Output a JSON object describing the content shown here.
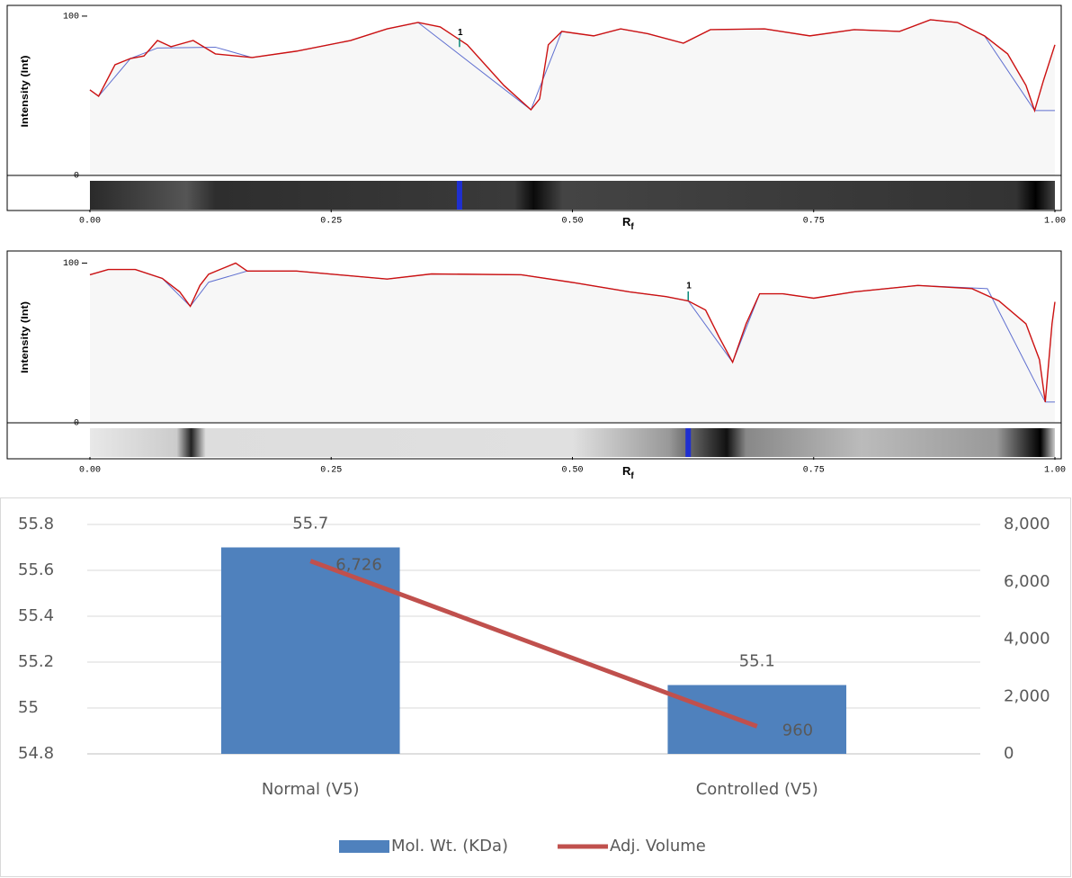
{
  "chart_data": [
    {
      "type": "densitometry",
      "y_label": "Intensity (Int)",
      "x_label": "R",
      "x_label_sub": "f",
      "xlim": [
        0,
        1
      ],
      "xticks": [
        {
          "value": 0,
          "label": "0.00"
        },
        {
          "value": 0.25,
          "label": "0.25"
        },
        {
          "value": 0.5,
          "label": "0.50"
        },
        {
          "value": 0.75,
          "label": "0.75"
        },
        {
          "value": 1,
          "label": "1.00"
        }
      ],
      "ylim": [
        0,
        105.6
      ],
      "yticks": [
        0,
        100
      ],
      "series": [
        {
          "color": "#cc1111",
          "x": [
            0,
            0.009,
            0.026,
            0.042,
            0.056,
            0.07,
            0.084,
            0.107,
            0.13,
            0.168,
            0.214,
            0.27,
            0.308,
            0.34,
            0.363,
            0.391,
            0.429,
            0.457,
            0.466,
            0.475,
            0.489,
            0.522,
            0.55,
            0.578,
            0.615,
            0.643,
            0.699,
            0.746,
            0.792,
            0.839,
            0.871,
            0.899,
            0.927,
            0.951,
            0.97,
            0.979,
            0.988,
            1.0
          ],
          "values": [
            53.7,
            49.7,
            69.5,
            73.4,
            75,
            84.7,
            80.8,
            84.7,
            76.3,
            74,
            78,
            84.7,
            92,
            96,
            93.2,
            82,
            56.5,
            41.2,
            48,
            82,
            90.4,
            87.6,
            92,
            89,
            83,
            91.5,
            92,
            87.6,
            91.5,
            90.4,
            97.7,
            96,
            87.6,
            76.3,
            56.5,
            40.7,
            59.3,
            82
          ]
        },
        {
          "color": "#6070d0",
          "x": [
            0,
            0.009,
            0.042,
            0.07,
            0.13,
            0.168,
            0.214,
            0.27,
            0.308,
            0.34,
            0.457,
            0.489,
            0.522,
            0.55,
            0.578,
            0.615,
            0.643,
            0.699,
            0.746,
            0.792,
            0.839,
            0.871,
            0.899,
            0.927,
            0.979,
            1.0
          ],
          "values": [
            53.7,
            49.7,
            73.4,
            80,
            80.5,
            74,
            78,
            84.7,
            92,
            96,
            41.2,
            90.4,
            87.6,
            92,
            89,
            83,
            91.5,
            92,
            87.6,
            91.5,
            90.4,
            97.7,
            96,
            87.6,
            40.7,
            40.7
          ]
        }
      ],
      "annotations": [
        {
          "text": "1",
          "x": 0.383,
          "y": 84
        }
      ],
      "marker_color": "#1f2fd0"
    },
    {
      "type": "densitometry",
      "y_label": "Intensity (Int)",
      "x_label": "R",
      "x_label_sub": "f",
      "xlim": [
        0,
        1
      ],
      "xticks": [
        {
          "value": 0,
          "label": "0.00"
        },
        {
          "value": 0.25,
          "label": "0.25"
        },
        {
          "value": 0.5,
          "label": "0.50"
        },
        {
          "value": 0.75,
          "label": "0.75"
        },
        {
          "value": 1,
          "label": "1.00"
        }
      ],
      "ylim": [
        0,
        107
      ],
      "yticks": [
        0,
        100
      ],
      "series": [
        {
          "color": "#cc1111",
          "x": [
            0,
            0.019,
            0.047,
            0.075,
            0.093,
            0.104,
            0.114,
            0.123,
            0.135,
            0.151,
            0.163,
            0.214,
            0.308,
            0.354,
            0.447,
            0.503,
            0.559,
            0.597,
            0.62,
            0.638,
            0.652,
            0.666,
            0.68,
            0.694,
            0.718,
            0.75,
            0.792,
            0.858,
            0.914,
            0.942,
            0.97,
            0.984,
            0.99,
            0.997,
            1.0
          ],
          "values": [
            92.7,
            96,
            96,
            90.4,
            82,
            72.9,
            86,
            93,
            96,
            100,
            95,
            95,
            90,
            93.2,
            92.7,
            87.6,
            82,
            79,
            76.3,
            70.6,
            53.7,
            37.9,
            62,
            80.8,
            80.8,
            78,
            82,
            86,
            84,
            76.3,
            62,
            39.5,
            13,
            62,
            75.7
          ]
        },
        {
          "color": "#6070d0",
          "x": [
            0,
            0.019,
            0.047,
            0.075,
            0.104,
            0.123,
            0.163,
            0.214,
            0.308,
            0.354,
            0.447,
            0.503,
            0.559,
            0.597,
            0.62,
            0.666,
            0.694,
            0.718,
            0.75,
            0.792,
            0.858,
            0.93,
            0.99,
            1.0
          ],
          "values": [
            92.7,
            96,
            96,
            90.4,
            72.9,
            88,
            95,
            95,
            90,
            93.2,
            92.7,
            87.6,
            82,
            79,
            76.3,
            37.9,
            80.8,
            80.8,
            78,
            82,
            86,
            84,
            13,
            13
          ]
        }
      ],
      "annotations": [
        {
          "text": "1",
          "x": 0.62,
          "y": 80
        }
      ],
      "marker_color": "#1f2fd0"
    },
    {
      "type": "combo",
      "categories": [
        "Normal (V5)",
        "Controlled (V5)"
      ],
      "series": [
        {
          "name": "Mol. Wt. (KDa)",
          "type": "bar",
          "color": "#4f81bd",
          "values": [
            55.7,
            55.1
          ]
        },
        {
          "name": "Adj. Volume",
          "type": "line",
          "color": "#c0504d",
          "axis": "y2",
          "values": [
            6726,
            960
          ],
          "value_labels": [
            "6,726",
            "960"
          ]
        }
      ],
      "ylim": [
        54.8,
        55.8
      ],
      "yticks": [
        54.8,
        55,
        55.2,
        55.4,
        55.6,
        55.8
      ],
      "y2lim": [
        0,
        8000
      ],
      "y2ticks": [
        0,
        {
          "value": 2000,
          "label": "2,000"
        },
        {
          "value": 4000,
          "label": "4,000"
        },
        {
          "value": 6000,
          "label": "6,000"
        },
        {
          "value": 8000,
          "label": "8,000"
        }
      ],
      "grid": true,
      "legend": "bottom"
    }
  ]
}
